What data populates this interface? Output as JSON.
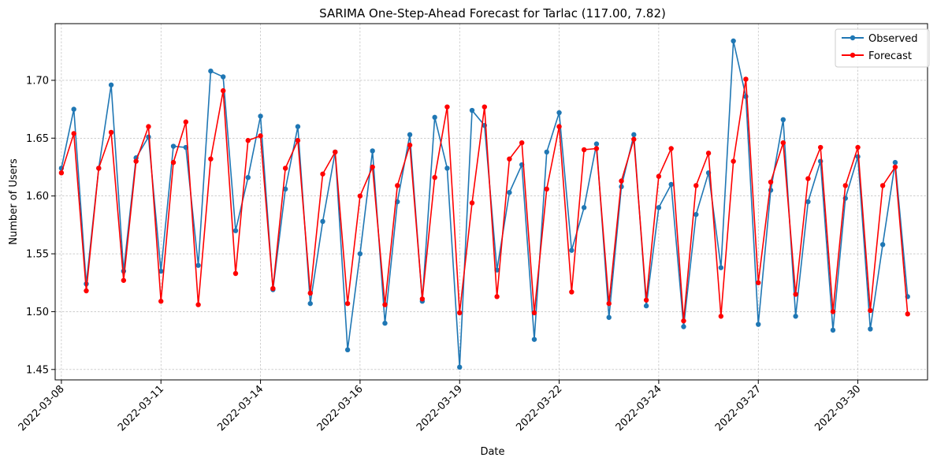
{
  "chart_data": {
    "type": "line",
    "title": "SARIMA One-Step-Ahead Forecast for Tarlac (117.00, 7.82)",
    "xlabel": "Date",
    "ylabel": "Number of Users",
    "x_tick_labels": [
      "2022-03-08",
      "2022-03-11",
      "2022-03-14",
      "2022-03-16",
      "2022-03-19",
      "2022-03-22",
      "2022-03-24",
      "2022-03-27",
      "2022-03-30"
    ],
    "y_ticks": [
      1.45,
      1.5,
      1.55,
      1.6,
      1.65,
      1.7
    ],
    "y_tick_labels": [
      "1.45",
      "1.50",
      "1.55",
      "1.60",
      "1.65",
      "1.70"
    ],
    "ylim": [
      1.441,
      1.749
    ],
    "x_range": [
      -0.5,
      69.6
    ],
    "x_tick_index": [
      0,
      8,
      16,
      24,
      32,
      40,
      48,
      56,
      64
    ],
    "grid": true,
    "legend_position": "top-right",
    "series": [
      {
        "name": "Observed",
        "color": "#1f77b4",
        "values": [
          1.624,
          1.675,
          1.524,
          1.624,
          1.696,
          1.535,
          1.633,
          1.651,
          1.535,
          1.643,
          1.642,
          1.54,
          1.708,
          1.703,
          1.57,
          1.616,
          1.669,
          1.519,
          1.606,
          1.66,
          1.507,
          1.578,
          1.638,
          1.467,
          1.55,
          1.639,
          1.49,
          1.595,
          1.653,
          1.509,
          1.668,
          1.624,
          1.452,
          1.674,
          1.661,
          1.536,
          1.603,
          1.627,
          1.476,
          1.638,
          1.672,
          1.553,
          1.59,
          1.645,
          1.495,
          1.608,
          1.653,
          1.505,
          1.59,
          1.61,
          1.487,
          1.584,
          1.62,
          1.538,
          1.734,
          1.686,
          1.489,
          1.605,
          1.666,
          1.496,
          1.595,
          1.63,
          1.484,
          1.598,
          1.634,
          1.485,
          1.558,
          1.629,
          1.513
        ]
      },
      {
        "name": "Forecast",
        "color": "#ff0000",
        "values": [
          1.62,
          1.654,
          1.518,
          1.624,
          1.655,
          1.527,
          1.63,
          1.66,
          1.509,
          1.629,
          1.664,
          1.506,
          1.632,
          1.691,
          1.533,
          1.648,
          1.652,
          1.52,
          1.624,
          1.648,
          1.516,
          1.619,
          1.638,
          1.507,
          1.6,
          1.625,
          1.506,
          1.609,
          1.644,
          1.511,
          1.616,
          1.677,
          1.499,
          1.594,
          1.677,
          1.513,
          1.632,
          1.646,
          1.499,
          1.606,
          1.66,
          1.517,
          1.64,
          1.641,
          1.507,
          1.613,
          1.649,
          1.51,
          1.617,
          1.641,
          1.492,
          1.609,
          1.637,
          1.496,
          1.63,
          1.701,
          1.525,
          1.612,
          1.646,
          1.515,
          1.615,
          1.642,
          1.5,
          1.609,
          1.642,
          1.501,
          1.609,
          1.625,
          1.498
        ]
      }
    ]
  }
}
